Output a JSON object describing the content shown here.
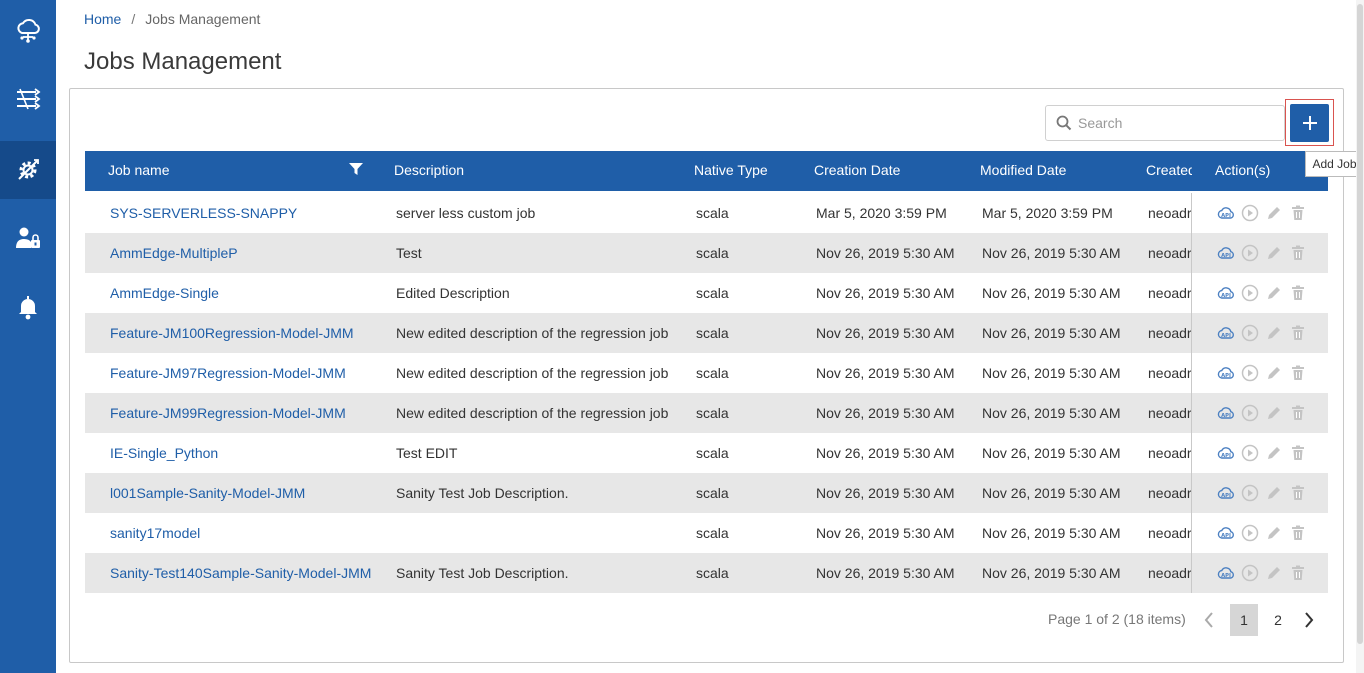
{
  "breadcrumb": {
    "home": "Home",
    "separator": "/",
    "current": "Jobs Management"
  },
  "page_title": "Jobs Management",
  "sidebar": {
    "items": [
      {
        "icon": "cloud-network-icon",
        "active": false
      },
      {
        "icon": "pipeline-icon",
        "active": false
      },
      {
        "icon": "jobs-gear-icon",
        "active": true
      },
      {
        "icon": "user-lock-icon",
        "active": false
      },
      {
        "icon": "bell-icon",
        "active": false
      }
    ]
  },
  "search": {
    "placeholder": "Search",
    "value": ""
  },
  "add_job": {
    "tooltip": "Add Job"
  },
  "table": {
    "headers": {
      "job_name": "Job name",
      "description": "Description",
      "native_type": "Native Type",
      "creation_date": "Creation Date",
      "modified_date": "Modified Date",
      "created_by": "Created",
      "actions": "Action(s)"
    },
    "rows": [
      {
        "name": "SYS-SERVERLESS-SNAPPY",
        "description": "server less custom job",
        "type": "scala",
        "created": "Mar 5, 2020 3:59 PM",
        "modified": "Mar 5, 2020 3:59 PM",
        "created_by": "neoadr"
      },
      {
        "name": "AmmEdge-MultipleP",
        "description": "Test",
        "type": "scala",
        "created": "Nov 26, 2019 5:30 AM",
        "modified": "Nov 26, 2019 5:30 AM",
        "created_by": "neoadr"
      },
      {
        "name": "AmmEdge-Single",
        "description": "Edited Description",
        "type": "scala",
        "created": "Nov 26, 2019 5:30 AM",
        "modified": "Nov 26, 2019 5:30 AM",
        "created_by": "neoadr"
      },
      {
        "name": "Feature-JM100Regression-Model-JMM",
        "description": "New edited description of the regression job",
        "type": "scala",
        "created": "Nov 26, 2019 5:30 AM",
        "modified": "Nov 26, 2019 5:30 AM",
        "created_by": "neoadr"
      },
      {
        "name": "Feature-JM97Regression-Model-JMM",
        "description": "New edited description of the regression job",
        "type": "scala",
        "created": "Nov 26, 2019 5:30 AM",
        "modified": "Nov 26, 2019 5:30 AM",
        "created_by": "neoadr"
      },
      {
        "name": "Feature-JM99Regression-Model-JMM",
        "description": "New edited description of the regression job",
        "type": "scala",
        "created": "Nov 26, 2019 5:30 AM",
        "modified": "Nov 26, 2019 5:30 AM",
        "created_by": "neoadr"
      },
      {
        "name": "IE-Single_Python",
        "description": "Test EDIT",
        "type": "scala",
        "created": "Nov 26, 2019 5:30 AM",
        "modified": "Nov 26, 2019 5:30 AM",
        "created_by": "neoadr"
      },
      {
        "name": "l001Sample-Sanity-Model-JMM",
        "description": "Sanity Test Job Description.",
        "type": "scala",
        "created": "Nov 26, 2019 5:30 AM",
        "modified": "Nov 26, 2019 5:30 AM",
        "created_by": "neoadr"
      },
      {
        "name": "sanity17model",
        "description": "",
        "type": "scala",
        "created": "Nov 26, 2019 5:30 AM",
        "modified": "Nov 26, 2019 5:30 AM",
        "created_by": "neoadr"
      },
      {
        "name": "Sanity-Test140Sample-Sanity-Model-JMM",
        "description": "Sanity Test Job Description.",
        "type": "scala",
        "created": "Nov 26, 2019 5:30 AM",
        "modified": "Nov 26, 2019 5:30 AM",
        "created_by": "neoadr"
      }
    ]
  },
  "pagination": {
    "info": "Page 1 of 2 (18 items)",
    "pages": [
      "1",
      "2"
    ],
    "current": "1"
  },
  "colors": {
    "primary": "#1f5ea8",
    "row_alt": "#e7e7e7",
    "highlight": "#d9534f",
    "icon_api": "#4a7fc1",
    "icon_disabled": "#c4c4c4"
  }
}
